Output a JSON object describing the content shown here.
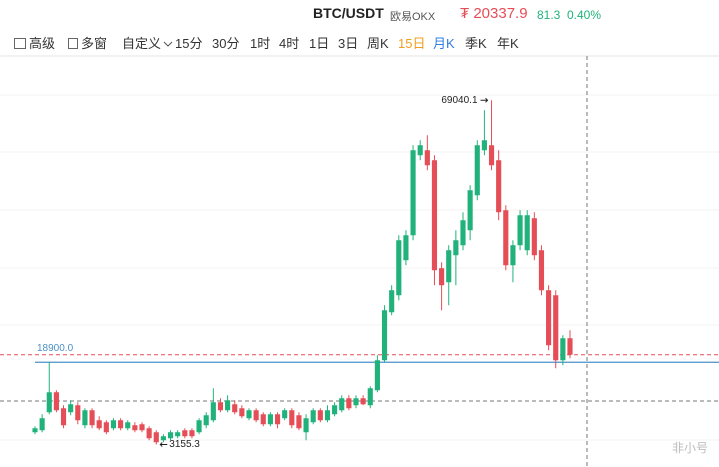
{
  "header": {
    "pair": "BTC/USDT",
    "exchange": "欧易OKX",
    "currency_symbol": "₮",
    "price": 20337.9,
    "change": 81.3,
    "change_percent": "0.40%"
  },
  "toolbar": {
    "advanced": "高级",
    "multi_window": "多窗",
    "custom": "自定义",
    "intervals": [
      "15分",
      "30分",
      "1时",
      "4时",
      "1日",
      "3日",
      "周K",
      "15日",
      "月K",
      "季K",
      "年K"
    ]
  },
  "watermark": "非小号",
  "chart_data": {
    "type": "candlestick",
    "up_color": "#20b27a",
    "down_color": "#e54d57",
    "ylim": [
      0,
      80000
    ],
    "reference_line": {
      "value": 18900,
      "label": "18900.0",
      "color": "#4a90c8"
    },
    "open": [
      5502,
      5885,
      9330,
      13158,
      10095,
      9330,
      10670,
      6842,
      9713,
      7799,
      7416,
      6268,
      7799,
      6268,
      6842,
      7033,
      6268,
      5502,
      3971,
      4353,
      4736,
      5885,
      5885,
      5502,
      6842,
      7799,
      11244,
      9713,
      10861,
      10095,
      8182,
      9713,
      8947,
      7033,
      8947,
      8182,
      9713,
      8756,
      5502,
      7416,
      9713,
      7799,
      8947,
      9713,
      12010,
      10670,
      12010,
      10670,
      13541,
      19284,
      28470,
      31724,
      38423,
      43208,
      58520,
      59477,
      57563,
      36892,
      34212,
      39380,
      41294,
      44165,
      50864,
      59477,
      60434,
      57563,
      47993,
      37466,
      41294,
      40337,
      46461,
      40337,
      32681,
      31724,
      19284,
      23493
    ],
    "high": [
      6651,
      8947,
      18900,
      13541,
      10670,
      11627,
      11244,
      10095,
      10095,
      8565,
      7799,
      8182,
      8182,
      7799,
      7416,
      7416,
      6651,
      5885,
      5119,
      5885,
      5885,
      6268,
      6268,
      8182,
      9330,
      13924,
      12010,
      12584,
      11627,
      10670,
      10095,
      10095,
      9330,
      9330,
      9330,
      10095,
      10095,
      9330,
      8947,
      10095,
      10095,
      10670,
      11244,
      12584,
      12584,
      12584,
      12584,
      14307,
      20240,
      29810,
      33638,
      43208,
      44165,
      60434,
      61391,
      62348,
      58520,
      38040,
      41294,
      44165,
      47611,
      52778,
      61391,
      67133,
      69040.1,
      59477,
      48950,
      42251,
      47993,
      47993,
      47611,
      41294,
      33638,
      32681,
      24069,
      25025
    ],
    "low": [
      5119,
      5502,
      8947,
      9330,
      6268,
      8756,
      7033,
      6268,
      6268,
      5885,
      5119,
      5885,
      5885,
      5885,
      5502,
      5502,
      3971,
      3155.3,
      3588,
      3971,
      4353,
      4353,
      4353,
      5119,
      6268,
      7416,
      9330,
      9330,
      8947,
      8182,
      7799,
      7416,
      6651,
      6651,
      6268,
      7799,
      6268,
      5885,
      3971,
      7033,
      7416,
      7416,
      8565,
      9330,
      9713,
      10095,
      10670,
      10095,
      13158,
      18900,
      27896,
      30767,
      37466,
      42251,
      57563,
      55649,
      33638,
      28853,
      29810,
      33638,
      40337,
      42251,
      49907,
      58520,
      55649,
      46079,
      36509,
      34212,
      40337,
      39380,
      38423,
      31724,
      21197,
      17752,
      18323,
      19666
    ],
    "close": [
      6268,
      8182,
      13158,
      9713,
      6842,
      10861,
      7799,
      9713,
      6842,
      6268,
      5502,
      7799,
      6268,
      7416,
      5885,
      5885,
      4353,
      3588,
      4736,
      5502,
      5502,
      4736,
      4736,
      7799,
      8756,
      11244,
      9713,
      11627,
      9330,
      8565,
      9713,
      7799,
      7033,
      8947,
      7033,
      9713,
      6842,
      6268,
      8182,
      9713,
      7799,
      9713,
      10670,
      12010,
      10095,
      12010,
      10861,
      13924,
      19284,
      28853,
      32681,
      42251,
      43208,
      59477,
      60434,
      56606,
      36509,
      33638,
      40337,
      42251,
      46079,
      51821,
      60434,
      61391,
      56606,
      47611,
      37466,
      41294,
      47036,
      47036,
      39380,
      32681,
      22154,
      19284,
      23493,
      20337.9
    ]
  }
}
